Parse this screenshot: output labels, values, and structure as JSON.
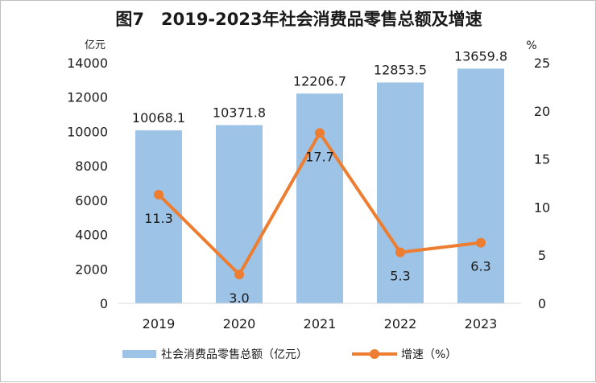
{
  "chart_data": {
    "type": "bar",
    "title": "图7　2019-2023年社会消费品零售总额及增速",
    "categories": [
      "2019",
      "2020",
      "2021",
      "2022",
      "2023"
    ],
    "series": [
      {
        "name": "社会消费品零售总额（亿元）",
        "type": "bar",
        "axis": "left",
        "values": [
          10068.1,
          10371.8,
          12206.7,
          12853.5,
          13659.8
        ],
        "labels": [
          "10068.1",
          "10371.8",
          "12206.7",
          "12853.5",
          "13659.8"
        ],
        "color": "#9dc3e6"
      },
      {
        "name": "增速（%）",
        "type": "line",
        "axis": "right",
        "values": [
          11.3,
          3.0,
          17.7,
          5.3,
          6.3
        ],
        "labels": [
          "11.3",
          "3.0",
          "17.7",
          "5.3",
          "6.3"
        ],
        "color": "#ed7d31"
      }
    ],
    "y_left": {
      "unit": "亿元",
      "range": [
        0,
        14000
      ],
      "ticks": [
        "0",
        "2000",
        "4000",
        "6000",
        "8000",
        "10000",
        "12000",
        "14000"
      ]
    },
    "y_right": {
      "unit": "%",
      "range": [
        0,
        25
      ],
      "ticks": [
        "0",
        "5",
        "10",
        "15",
        "20",
        "25"
      ]
    },
    "grid": false,
    "legend": "bottom"
  }
}
